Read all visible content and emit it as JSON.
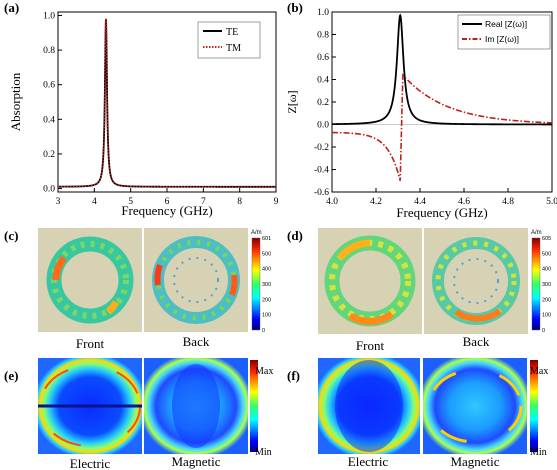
{
  "panel_labels": {
    "a": "(a)",
    "b": "(b)",
    "c": "(c)",
    "d": "(d)",
    "e": "(e)",
    "f": "(f)"
  },
  "field_maps": {
    "c": {
      "left_label": "Front",
      "right_label": "Back",
      "unit": "A/m",
      "ticks": [
        "0",
        "100",
        "200",
        "300",
        "400",
        "500",
        "601"
      ]
    },
    "d": {
      "left_label": "Front",
      "right_label": "Back",
      "unit": "A/m",
      "ticks": [
        "0",
        "100",
        "200",
        "300",
        "400",
        "500",
        "605"
      ]
    },
    "e": {
      "left_label": "Electric",
      "right_label": "Magnetic",
      "max_label": "Max",
      "min_label": "Min"
    },
    "f": {
      "left_label": "Electric",
      "right_label": "Magnetic",
      "max_label": "Max",
      "min_label": "Min"
    }
  },
  "colors": {
    "te": "#000000",
    "tm": "#cc2222",
    "real": "#000000",
    "imag": "#c0201c"
  },
  "chart_data": [
    {
      "id": "a",
      "type": "line",
      "xlabel": "Frequency (GHz)",
      "ylabel": "Absorption",
      "xlim": [
        3,
        9
      ],
      "ylim": [
        -0.02,
        1.02
      ],
      "xticks": [
        "3",
        "4",
        "5",
        "6",
        "7",
        "8",
        "9"
      ],
      "yticks": [
        "0.0",
        "0.2",
        "0.4",
        "0.6",
        "0.8",
        "1.0"
      ],
      "legend": "top-right",
      "resonance": {
        "f0": 4.32,
        "peak": 0.98,
        "halfwidth": 0.035
      },
      "series": [
        {
          "name": "TE",
          "style": "solid",
          "x": [
            3.0,
            3.5,
            4.0,
            4.15,
            4.22,
            4.26,
            4.28,
            4.3,
            4.31,
            4.32,
            4.33,
            4.34,
            4.36,
            4.38,
            4.42,
            4.5,
            4.7,
            5.0,
            6.0,
            7.0,
            8.0,
            9.0
          ],
          "y": [
            0.01,
            0.01,
            0.02,
            0.04,
            0.09,
            0.18,
            0.28,
            0.55,
            0.8,
            0.98,
            0.8,
            0.55,
            0.28,
            0.16,
            0.08,
            0.04,
            0.02,
            0.01,
            0.0,
            0.0,
            0.0,
            0.0
          ]
        },
        {
          "name": "TM",
          "style": "dotted",
          "x": [
            3.0,
            3.5,
            4.0,
            4.15,
            4.22,
            4.26,
            4.28,
            4.3,
            4.31,
            4.32,
            4.33,
            4.34,
            4.36,
            4.38,
            4.42,
            4.5,
            4.7,
            5.0,
            6.0,
            7.0,
            8.0,
            9.0
          ],
          "y": [
            0.01,
            0.01,
            0.02,
            0.04,
            0.09,
            0.18,
            0.28,
            0.55,
            0.8,
            0.98,
            0.8,
            0.55,
            0.28,
            0.16,
            0.08,
            0.04,
            0.02,
            0.01,
            0.0,
            0.0,
            0.0,
            0.0
          ]
        }
      ]
    },
    {
      "id": "b",
      "type": "line",
      "xlabel": "Frequency (GHz)",
      "ylabel": "Z[ω]",
      "xlim": [
        4.0,
        5.0
      ],
      "ylim": [
        -0.6,
        1.0
      ],
      "xticks": [
        "4.0",
        "4.2",
        "4.4",
        "4.6",
        "4.8",
        "5.0"
      ],
      "yticks": [
        "-0.6",
        "-0.4",
        "-0.2",
        "0.0",
        "0.2",
        "0.4",
        "0.6",
        "0.8",
        "1.0"
      ],
      "legend": "top-right",
      "resonance": {
        "f0": 4.31,
        "halfwidth": 0.018
      },
      "series": [
        {
          "name": "Real [Z(ω)]",
          "style": "solid",
          "x": [
            4.0,
            4.1,
            4.2,
            4.25,
            4.28,
            4.3,
            4.31,
            4.32,
            4.34,
            4.37,
            4.4,
            4.5,
            4.6,
            4.8,
            5.0
          ],
          "y": [
            0.0,
            0.01,
            0.03,
            0.09,
            0.3,
            0.8,
            0.97,
            0.8,
            0.3,
            0.09,
            0.03,
            0.01,
            0.0,
            0.0,
            0.0
          ]
        },
        {
          "name": "Im [Z(ω)]",
          "style": "dashdot",
          "x": [
            4.0,
            4.1,
            4.2,
            4.25,
            4.28,
            4.3,
            4.31,
            4.32,
            4.33,
            4.35,
            4.4,
            4.5,
            4.6,
            4.8,
            5.0
          ],
          "y": [
            -0.07,
            -0.09,
            -0.15,
            -0.25,
            -0.38,
            -0.48,
            -0.5,
            0.43,
            0.42,
            0.36,
            0.25,
            0.15,
            0.1,
            0.05,
            0.02
          ]
        }
      ]
    }
  ]
}
